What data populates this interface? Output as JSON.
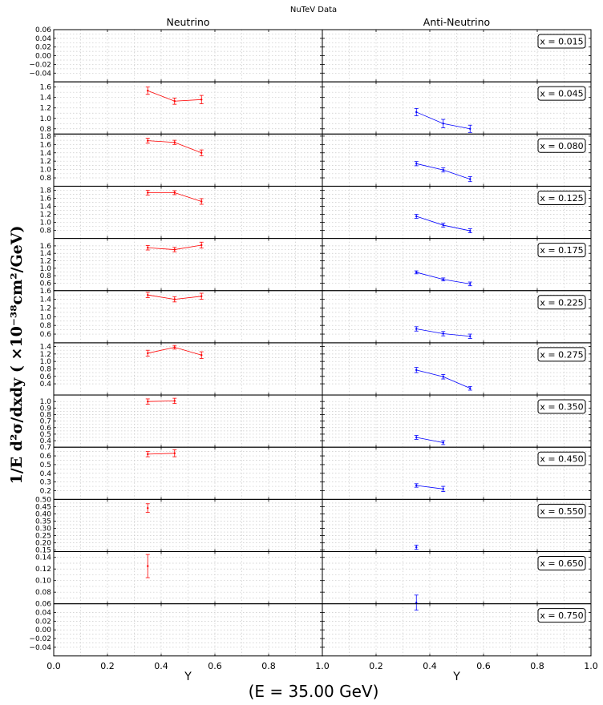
{
  "figure": {
    "suptitle": "NuTeV Data",
    "ylabel": "1/E  d²σ/dxdy  ( ×10⁻³⁸cm²/GeV)",
    "energy_label": "(E = 35.00 GeV)",
    "xlabel": "Y",
    "columns": [
      "Neutrino",
      "Anti-Neutrino"
    ],
    "colors": {
      "neutrino": "#ff0000",
      "antineutrino": "#0000ff",
      "grid": "#c8c8c8"
    }
  },
  "chart_data": {
    "type": "line",
    "layout": "12 rows x 2 columns of subplots with error bars; rows share y-axis; dotted grid",
    "xlim": [
      0.0,
      1.0
    ],
    "xticks": [
      "0.0",
      "0.2",
      "0.4",
      "0.6",
      "0.8",
      "1.0"
    ],
    "rows": [
      {
        "label": "x = 0.015",
        "ylim": [
          -0.06,
          0.06
        ],
        "yticks": [
          -0.04,
          -0.02,
          0.0,
          0.02,
          0.04,
          0.06
        ],
        "ytick_labels": [
          "−0.04",
          "−0.02",
          "0.00",
          "0.02",
          "0.04",
          "0.06"
        ],
        "neutrino": [],
        "antineutrino": []
      },
      {
        "label": "x = 0.045",
        "ylim": [
          0.7,
          1.7
        ],
        "yticks": [
          0.8,
          1.0,
          1.2,
          1.4,
          1.6
        ],
        "ytick_labels": [
          "0.8",
          "1.0",
          "1.2",
          "1.4",
          "1.6"
        ],
        "neutrino": [
          {
            "y": 0.35,
            "v": 1.53,
            "err": 0.07
          },
          {
            "y": 0.45,
            "v": 1.33,
            "err": 0.06
          },
          {
            "y": 0.55,
            "v": 1.36,
            "err": 0.08
          }
        ],
        "antineutrino": [
          {
            "y": 0.35,
            "v": 1.12,
            "err": 0.07
          },
          {
            "y": 0.45,
            "v": 0.9,
            "err": 0.08
          },
          {
            "y": 0.55,
            "v": 0.8,
            "err": 0.07
          }
        ]
      },
      {
        "label": "x = 0.080",
        "ylim": [
          0.6,
          1.85
        ],
        "yticks": [
          0.8,
          1.0,
          1.2,
          1.4,
          1.6,
          1.8
        ],
        "ytick_labels": [
          "0.8",
          "1.0",
          "1.2",
          "1.4",
          "1.6",
          "1.8"
        ],
        "neutrino": [
          {
            "y": 0.35,
            "v": 1.69,
            "err": 0.06
          },
          {
            "y": 0.45,
            "v": 1.65,
            "err": 0.05
          },
          {
            "y": 0.55,
            "v": 1.4,
            "err": 0.07
          }
        ],
        "antineutrino": [
          {
            "y": 0.35,
            "v": 1.14,
            "err": 0.05
          },
          {
            "y": 0.45,
            "v": 0.99,
            "err": 0.05
          },
          {
            "y": 0.55,
            "v": 0.77,
            "err": 0.06
          }
        ]
      },
      {
        "label": "x = 0.125",
        "ylim": [
          0.6,
          1.9
        ],
        "yticks": [
          0.8,
          1.0,
          1.2,
          1.4,
          1.6,
          1.8
        ],
        "ytick_labels": [
          "0.8",
          "1.0",
          "1.2",
          "1.4",
          "1.6",
          "1.8"
        ],
        "neutrino": [
          {
            "y": 0.35,
            "v": 1.74,
            "err": 0.06
          },
          {
            "y": 0.45,
            "v": 1.74,
            "err": 0.05
          },
          {
            "y": 0.55,
            "v": 1.52,
            "err": 0.07
          }
        ],
        "antineutrino": [
          {
            "y": 0.35,
            "v": 1.15,
            "err": 0.05
          },
          {
            "y": 0.45,
            "v": 0.93,
            "err": 0.05
          },
          {
            "y": 0.55,
            "v": 0.79,
            "err": 0.05
          }
        ]
      },
      {
        "label": "x = 0.175",
        "ylim": [
          0.4,
          1.8
        ],
        "yticks": [
          0.6,
          0.8,
          1.0,
          1.2,
          1.4,
          1.6
        ],
        "ytick_labels": [
          "0.6",
          "0.8",
          "1.0",
          "1.2",
          "1.4",
          "1.6"
        ],
        "neutrino": [
          {
            "y": 0.35,
            "v": 1.55,
            "err": 0.06
          },
          {
            "y": 0.45,
            "v": 1.5,
            "err": 0.06
          },
          {
            "y": 0.55,
            "v": 1.62,
            "err": 0.08
          }
        ],
        "antineutrino": [
          {
            "y": 0.35,
            "v": 0.89,
            "err": 0.04
          },
          {
            "y": 0.45,
            "v": 0.7,
            "err": 0.04
          },
          {
            "y": 0.55,
            "v": 0.58,
            "err": 0.05
          }
        ]
      },
      {
        "label": "x = 0.225",
        "ylim": [
          0.4,
          1.6
        ],
        "yticks": [
          0.6,
          0.8,
          1.0,
          1.2,
          1.4,
          1.6
        ],
        "ytick_labels": [
          "0.6",
          "0.8",
          "1.0",
          "1.2",
          "1.4",
          "1.6"
        ],
        "neutrino": [
          {
            "y": 0.35,
            "v": 1.5,
            "err": 0.06
          },
          {
            "y": 0.45,
            "v": 1.4,
            "err": 0.06
          },
          {
            "y": 0.55,
            "v": 1.47,
            "err": 0.07
          }
        ],
        "antineutrino": [
          {
            "y": 0.35,
            "v": 0.72,
            "err": 0.05
          },
          {
            "y": 0.45,
            "v": 0.61,
            "err": 0.05
          },
          {
            "y": 0.55,
            "v": 0.55,
            "err": 0.05
          }
        ]
      },
      {
        "label": "x = 0.275",
        "ylim": [
          0.1,
          1.5
        ],
        "yticks": [
          0.4,
          0.6,
          0.8,
          1.0,
          1.2,
          1.4
        ],
        "ytick_labels": [
          "0.4",
          "0.6",
          "0.8",
          "1.0",
          "1.2",
          "1.4"
        ],
        "neutrino": [
          {
            "y": 0.35,
            "v": 1.22,
            "err": 0.08
          },
          {
            "y": 0.45,
            "v": 1.38,
            "err": 0.05
          },
          {
            "y": 0.55,
            "v": 1.17,
            "err": 0.09
          }
        ],
        "antineutrino": [
          {
            "y": 0.35,
            "v": 0.77,
            "err": 0.07
          },
          {
            "y": 0.45,
            "v": 0.59,
            "err": 0.06
          },
          {
            "y": 0.55,
            "v": 0.28,
            "err": 0.05
          }
        ]
      },
      {
        "label": "x = 0.350",
        "ylim": [
          0.3,
          1.1
        ],
        "yticks": [
          0.4,
          0.5,
          0.6,
          0.7,
          0.8,
          0.9,
          1.0
        ],
        "ytick_labels": [
          "0.4",
          "0.5",
          "0.6",
          "0.7",
          "0.8",
          "0.9",
          "1.0"
        ],
        "neutrino": [
          {
            "y": 0.35,
            "v": 1.0,
            "err": 0.04
          },
          {
            "y": 0.45,
            "v": 1.01,
            "err": 0.04
          }
        ],
        "antineutrino": [
          {
            "y": 0.35,
            "v": 0.45,
            "err": 0.03
          },
          {
            "y": 0.45,
            "v": 0.37,
            "err": 0.03
          }
        ]
      },
      {
        "label": "x = 0.450",
        "ylim": [
          0.1,
          0.7
        ],
        "yticks": [
          0.2,
          0.3,
          0.4,
          0.5,
          0.6,
          0.7
        ],
        "ytick_labels": [
          "0.2",
          "0.3",
          "0.4",
          "0.5",
          "0.6",
          "0.7"
        ],
        "neutrino": [
          {
            "y": 0.35,
            "v": 0.62,
            "err": 0.03
          },
          {
            "y": 0.45,
            "v": 0.63,
            "err": 0.04
          }
        ],
        "antineutrino": [
          {
            "y": 0.35,
            "v": 0.26,
            "err": 0.02
          },
          {
            "y": 0.45,
            "v": 0.22,
            "err": 0.03
          }
        ]
      },
      {
        "label": "x = 0.550",
        "ylim": [
          0.14,
          0.5
        ],
        "yticks": [
          0.15,
          0.2,
          0.25,
          0.3,
          0.35,
          0.4,
          0.45,
          0.5
        ],
        "ytick_labels": [
          "0.15",
          "0.20",
          "0.25",
          "0.30",
          "0.35",
          "0.40",
          "0.45",
          "0.50"
        ],
        "neutrino": [
          {
            "y": 0.35,
            "v": 0.44,
            "err": 0.03
          }
        ],
        "antineutrino": [
          {
            "y": 0.35,
            "v": 0.17,
            "err": 0.015
          }
        ]
      },
      {
        "label": "x = 0.650",
        "ylim": [
          0.06,
          0.15
        ],
        "yticks": [
          0.06,
          0.08,
          0.1,
          0.12,
          0.14
        ],
        "ytick_labels": [
          "0.06",
          "0.08",
          "0.10",
          "0.12",
          "0.14"
        ],
        "neutrino": [
          {
            "y": 0.35,
            "v": 0.125,
            "err": 0.02
          }
        ],
        "antineutrino": [
          {
            "y": 0.35,
            "v": 0.062,
            "err": 0.013
          }
        ]
      },
      {
        "label": "x = 0.750",
        "ylim": [
          -0.06,
          0.06
        ],
        "yticks": [
          -0.04,
          -0.02,
          0.0,
          0.02,
          0.04
        ],
        "ytick_labels": [
          "−0.04",
          "−0.02",
          "0.00",
          "0.02",
          "0.04"
        ],
        "neutrino": [],
        "antineutrino": []
      }
    ]
  }
}
